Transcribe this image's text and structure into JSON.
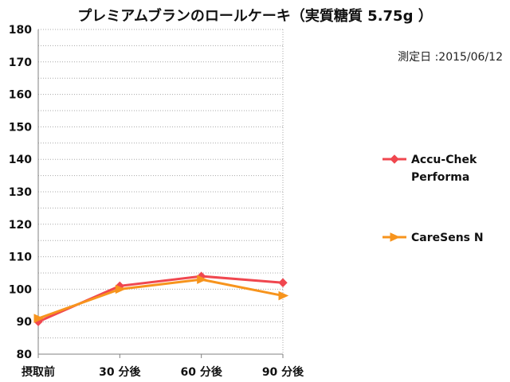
{
  "chart_data": {
    "type": "line",
    "title": "プレミアムブランのロールケーキ（実質糖質 5.75g ）",
    "annotation": "測定日 :2015/06/12",
    "categories": [
      "摂取前",
      "30 分後",
      "60 分後",
      "90 分後"
    ],
    "ylim": [
      80,
      180
    ],
    "yticks": [
      80,
      90,
      100,
      110,
      120,
      130,
      140,
      150,
      160,
      170,
      180
    ],
    "grid": true,
    "legend_position": "right",
    "series": [
      {
        "name": "Accu-Chek Performa",
        "name_lines": [
          "Accu-Chek",
          "Performa"
        ],
        "values": [
          90,
          101,
          104,
          102
        ],
        "color": "#f0474f",
        "marker": "diamond"
      },
      {
        "name": "CareSens N",
        "name_lines": [
          "CareSens N"
        ],
        "values": [
          91,
          100,
          103,
          98
        ],
        "color": "#f7941d",
        "marker": "triangle"
      }
    ]
  }
}
